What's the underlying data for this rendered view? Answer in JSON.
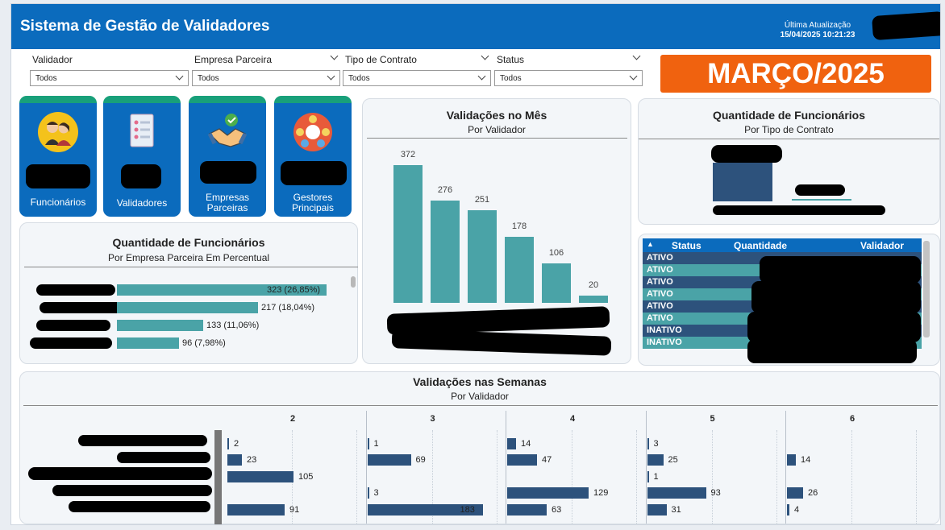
{
  "header": {
    "title": "Sistema de Gestão de Validadores",
    "last_update_label": "Última Atualização",
    "last_update_value": "15/04/2025 10:21:23"
  },
  "filters": [
    {
      "label": "Validador",
      "value": "Todos"
    },
    {
      "label": "Empresa Parceira",
      "value": "Todos"
    },
    {
      "label": "Tipo de Contrato",
      "value": "Todos"
    },
    {
      "label": "Status",
      "value": "Todos"
    }
  ],
  "period": "MARÇO/2025",
  "cards": [
    {
      "label": "Funcionários",
      "icon": "people-icon"
    },
    {
      "label": "Validadores",
      "icon": "document-icon"
    },
    {
      "label_lines": [
        "Empresas",
        "Parceiras"
      ],
      "icon": "handshake-icon"
    },
    {
      "label_lines": [
        "Gestores",
        "Principais"
      ],
      "icon": "team-icon"
    }
  ],
  "funcionarios_empresa": {
    "title": "Quantidade de Funcionários",
    "subtitle": "Por Empresa Parceira Em Percentual",
    "rows": [
      {
        "value": 323,
        "label": "323 (26,85%)"
      },
      {
        "value": 217,
        "label": "217 (18,04%)"
      },
      {
        "value": 133,
        "label": "133 (11,06%)"
      },
      {
        "value": 96,
        "label": "96 (7,98%)"
      }
    ]
  },
  "validacoes_mes": {
    "title": "Validações no Mês",
    "subtitle": "Por Validador",
    "values": [
      372,
      276,
      251,
      178,
      106,
      20
    ]
  },
  "funcionarios_contrato": {
    "title": "Quantidade de Funcionários",
    "subtitle": "Por Tipo de Contrato"
  },
  "status_table": {
    "headers": [
      "Status",
      "Quantidade",
      "Validador"
    ],
    "rows": [
      "ATIVO",
      "ATIVO",
      "ATIVO",
      "ATIVO",
      "ATIVO",
      "ATIVO",
      "INATIVO",
      "INATIVO"
    ]
  },
  "semanas": {
    "title": "Validações nas Semanas",
    "subtitle": "Por Validador",
    "weeks": [
      {
        "label": "2",
        "values": [
          2,
          23,
          105,
          null,
          91
        ]
      },
      {
        "label": "3",
        "values": [
          1,
          69,
          null,
          3,
          183
        ]
      },
      {
        "label": "4",
        "values": [
          14,
          47,
          null,
          129,
          63
        ]
      },
      {
        "label": "5",
        "values": [
          3,
          25,
          1,
          93,
          31
        ]
      },
      {
        "label": "6",
        "values": [
          null,
          14,
          null,
          26,
          4
        ]
      }
    ]
  },
  "colors": {
    "header": "#0b6bbd",
    "accent_orange": "#f0620f",
    "teal": "#4aa3a7",
    "navy": "#2d527c",
    "card_top": "#18a07a"
  }
}
